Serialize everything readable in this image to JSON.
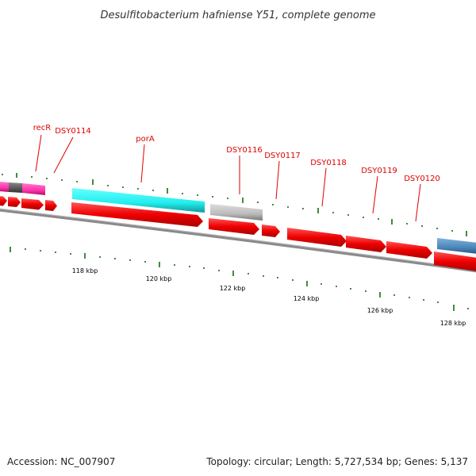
{
  "title": "Desulfitobacterium hafniense Y51, complete genome",
  "footer": {
    "accession": "Accession: NC_007907",
    "summary": "Topology: circular; Length: 5,727,534 bp; Genes: 5,137"
  },
  "gene_labels": [
    "recR",
    "DSY0114",
    "porA",
    "DSY0116",
    "DSY0117",
    "DSY0118",
    "DSY0119",
    "DSY0120"
  ],
  "scale_labels": [
    "118 kbp",
    "120 kbp",
    "122 kbp",
    "124 kbp",
    "126 kbp",
    "128 kbp"
  ],
  "colors": {
    "cds_forward": "#ff0000",
    "magenta_feature": "#ff33aa",
    "cyan_feature": "#22eeee",
    "gray_feature": "#bbbbbb",
    "blue_feature": "#4a86b8",
    "dark_feature": "#555555",
    "tick": "#006600",
    "backbone": "#808080",
    "label": "#dd0000"
  }
}
